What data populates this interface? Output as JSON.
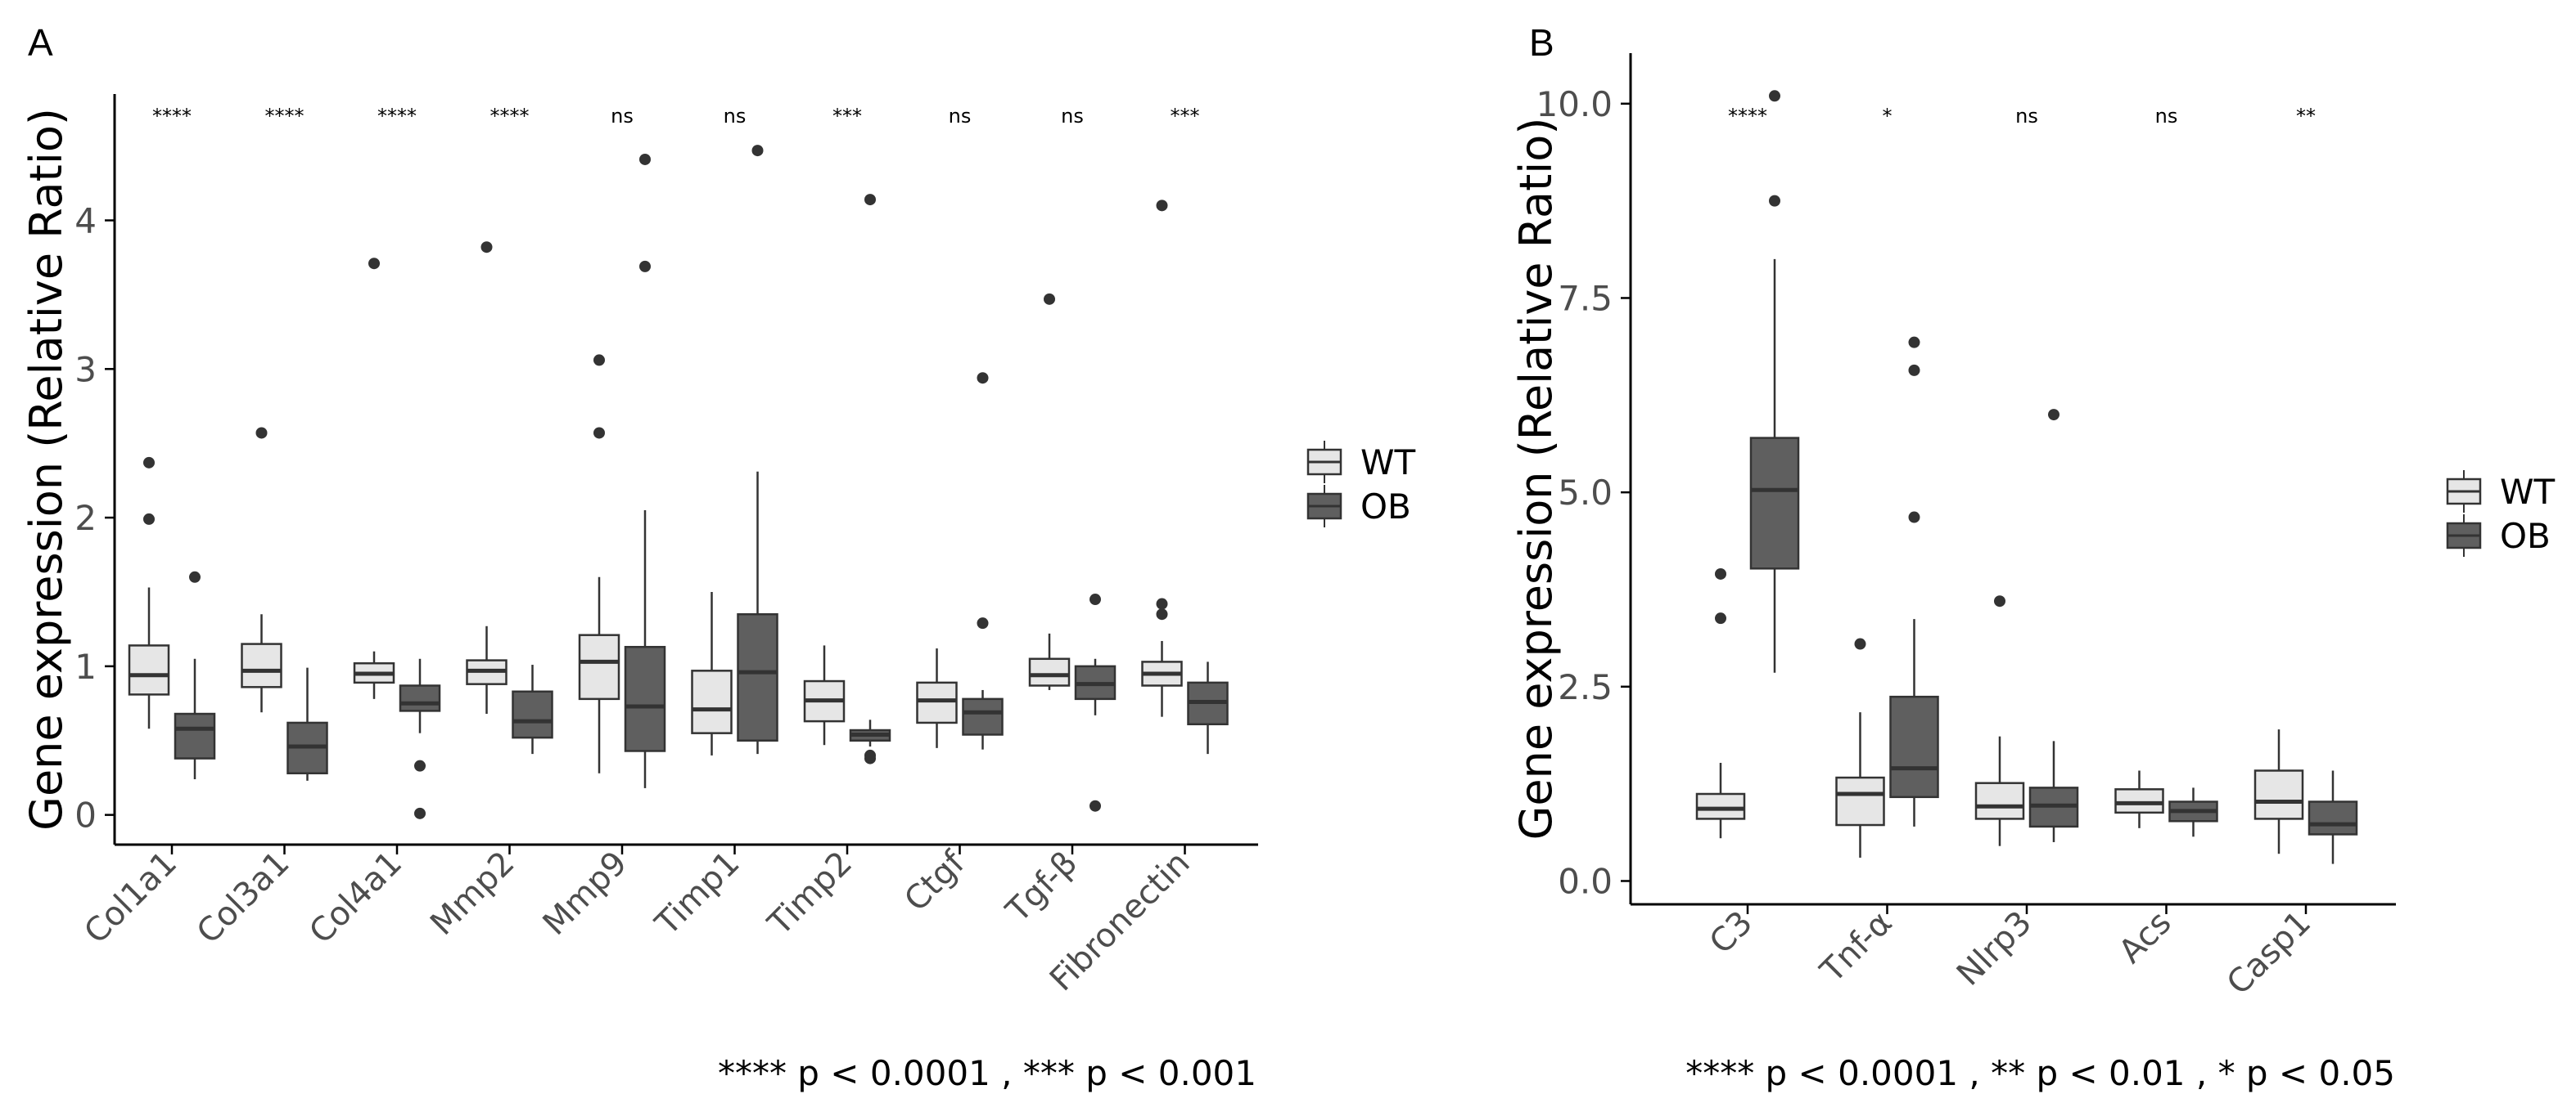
{
  "colors": {
    "wt_fill": "#e6e6e6",
    "ob_fill": "#5f5f5f",
    "stroke": "#333333",
    "axis": "#000000",
    "text": "#4d4d4d"
  },
  "chart_data": [
    {
      "type": "box",
      "panel_label": "A",
      "ylabel": "Gene expression (Relative Ratio)",
      "ylim": [
        -0.2,
        4.85
      ],
      "yticks": [
        0,
        1,
        2,
        3,
        4
      ],
      "ytick_labels": [
        "0",
        "1",
        "2",
        "3",
        "4"
      ],
      "categories": [
        "Col1a1",
        "Col3a1",
        "Col4a1",
        "Mmp2",
        "Mmp9",
        "Timp1",
        "Timp2",
        "Ctgf",
        "Tgf-β",
        "Fibronectin"
      ],
      "significance": [
        "****",
        "****",
        "****",
        "****",
        "ns",
        "ns",
        "***",
        "ns",
        "ns",
        "***"
      ],
      "footnote": "**** p < 0.0001 , *** p < 0.001",
      "legend": {
        "position": "right",
        "entries": [
          "WT",
          "OB"
        ]
      },
      "series": [
        {
          "name": "WT",
          "boxes": [
            {
              "min": 0.58,
              "q1": 0.81,
              "median": 0.94,
              "q3": 1.14,
              "max": 1.53,
              "outliers": [
                1.99,
                2.37
              ]
            },
            {
              "min": 0.69,
              "q1": 0.86,
              "median": 0.97,
              "q3": 1.15,
              "max": 1.35,
              "outliers": [
                2.57
              ]
            },
            {
              "min": 0.78,
              "q1": 0.89,
              "median": 0.95,
              "q3": 1.02,
              "max": 1.1,
              "outliers": [
                3.71
              ]
            },
            {
              "min": 0.68,
              "q1": 0.88,
              "median": 0.97,
              "q3": 1.04,
              "max": 1.27,
              "outliers": [
                3.82
              ]
            },
            {
              "min": 0.28,
              "q1": 0.78,
              "median": 1.03,
              "q3": 1.21,
              "max": 1.6,
              "outliers": [
                2.57,
                3.06
              ]
            },
            {
              "min": 0.4,
              "q1": 0.55,
              "median": 0.71,
              "q3": 0.97,
              "max": 1.5,
              "outliers": []
            },
            {
              "min": 0.47,
              "q1": 0.63,
              "median": 0.77,
              "q3": 0.9,
              "max": 1.14,
              "outliers": []
            },
            {
              "min": 0.45,
              "q1": 0.62,
              "median": 0.77,
              "q3": 0.89,
              "max": 1.12,
              "outliers": []
            },
            {
              "min": 0.84,
              "q1": 0.87,
              "median": 0.94,
              "q3": 1.05,
              "max": 1.22,
              "outliers": [
                3.47
              ]
            },
            {
              "min": 0.66,
              "q1": 0.87,
              "median": 0.95,
              "q3": 1.03,
              "max": 1.17,
              "outliers": [
                1.35,
                1.42,
                4.1
              ]
            }
          ]
        },
        {
          "name": "OB",
          "boxes": [
            {
              "min": 0.24,
              "q1": 0.38,
              "median": 0.58,
              "q3": 0.68,
              "max": 1.05,
              "outliers": [
                1.6
              ]
            },
            {
              "min": 0.23,
              "q1": 0.28,
              "median": 0.46,
              "q3": 0.62,
              "max": 0.99,
              "outliers": []
            },
            {
              "min": 0.55,
              "q1": 0.7,
              "median": 0.75,
              "q3": 0.87,
              "max": 1.05,
              "outliers": [
                0.01,
                0.33
              ]
            },
            {
              "min": 0.41,
              "q1": 0.52,
              "median": 0.63,
              "q3": 0.83,
              "max": 1.01,
              "outliers": []
            },
            {
              "min": 0.18,
              "q1": 0.43,
              "median": 0.73,
              "q3": 1.13,
              "max": 2.05,
              "outliers": [
                3.69,
                4.41
              ]
            },
            {
              "min": 0.41,
              "q1": 0.5,
              "median": 0.96,
              "q3": 1.35,
              "max": 2.31,
              "outliers": [
                4.47
              ]
            },
            {
              "min": 0.46,
              "q1": 0.5,
              "median": 0.54,
              "q3": 0.57,
              "max": 0.64,
              "outliers": [
                0.38,
                0.4,
                4.14
              ]
            },
            {
              "min": 0.44,
              "q1": 0.54,
              "median": 0.69,
              "q3": 0.78,
              "max": 0.84,
              "outliers": [
                1.29,
                2.94
              ]
            },
            {
              "min": 0.67,
              "q1": 0.78,
              "median": 0.88,
              "q3": 1.0,
              "max": 1.05,
              "outliers": [
                0.06,
                1.45
              ]
            },
            {
              "min": 0.41,
              "q1": 0.61,
              "median": 0.76,
              "q3": 0.89,
              "max": 1.03,
              "outliers": []
            }
          ]
        }
      ]
    },
    {
      "type": "box",
      "panel_label": "B",
      "ylabel": "Gene expression (Relative Ratio)",
      "ylim": [
        -0.3,
        10.65
      ],
      "yticks": [
        0,
        2.5,
        5,
        7.5,
        10
      ],
      "ytick_labels": [
        "0.0",
        "2.5",
        "5.0",
        "7.5",
        "10.0"
      ],
      "categories": [
        "C3",
        "Tnf-α",
        "Nlrp3",
        "Acs",
        "Casp1"
      ],
      "significance": [
        "****",
        "*",
        "ns",
        "ns",
        "**"
      ],
      "footnote": "**** p < 0.0001 , ** p < 0.01 , * p < 0.05",
      "legend": {
        "position": "right",
        "entries": [
          "WT",
          "OB"
        ]
      },
      "series": [
        {
          "name": "WT",
          "boxes": [
            {
              "min": 0.55,
              "q1": 0.8,
              "median": 0.93,
              "q3": 1.12,
              "max": 1.52,
              "outliers": [
                3.38,
                3.95
              ]
            },
            {
              "min": 0.3,
              "q1": 0.72,
              "median": 1.12,
              "q3": 1.33,
              "max": 2.17,
              "outliers": [
                3.05
              ]
            },
            {
              "min": 0.45,
              "q1": 0.8,
              "median": 0.96,
              "q3": 1.26,
              "max": 1.86,
              "outliers": [
                3.6
              ]
            },
            {
              "min": 0.68,
              "q1": 0.88,
              "median": 1.0,
              "q3": 1.18,
              "max": 1.42,
              "outliers": []
            },
            {
              "min": 0.35,
              "q1": 0.8,
              "median": 1.02,
              "q3": 1.42,
              "max": 1.95,
              "outliers": []
            }
          ]
        },
        {
          "name": "OB",
          "boxes": [
            {
              "min": 2.68,
              "q1": 4.02,
              "median": 5.03,
              "q3": 5.7,
              "max": 8.0,
              "outliers": [
                8.75,
                10.1
              ]
            },
            {
              "min": 0.7,
              "q1": 1.08,
              "median": 1.45,
              "q3": 2.37,
              "max": 3.37,
              "outliers": [
                4.68,
                6.57,
                6.93
              ]
            },
            {
              "min": 0.5,
              "q1": 0.7,
              "median": 0.97,
              "q3": 1.2,
              "max": 1.8,
              "outliers": [
                6.0
              ]
            },
            {
              "min": 0.57,
              "q1": 0.77,
              "median": 0.9,
              "q3": 1.02,
              "max": 1.2,
              "outliers": []
            },
            {
              "min": 0.22,
              "q1": 0.6,
              "median": 0.73,
              "q3": 1.02,
              "max": 1.42,
              "outliers": []
            }
          ]
        }
      ]
    }
  ]
}
